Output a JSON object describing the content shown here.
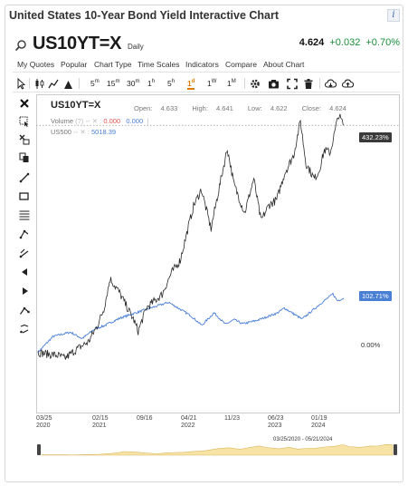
{
  "page": {
    "title": "United States 10-Year Bond Yield Interactive Chart"
  },
  "header": {
    "symbol": "US10YT=X",
    "period": "Daily",
    "last": "4.624",
    "change": "+0.032",
    "change_pct": "+0.70%"
  },
  "menu": [
    "My Quotes",
    "Popular",
    "Chart Type",
    "Time Scales",
    "Indicators",
    "Compare",
    "About Chart"
  ],
  "toolbar": {
    "periods": [
      {
        "n": "5",
        "u": "m"
      },
      {
        "n": "15",
        "u": "m"
      },
      {
        "n": "30",
        "u": "m"
      },
      {
        "n": "1",
        "u": "h"
      },
      {
        "n": "5",
        "u": "h"
      },
      {
        "n": "1",
        "u": "d"
      },
      {
        "n": "1",
        "u": "W"
      },
      {
        "n": "1",
        "u": "M"
      }
    ],
    "active_period": "1d"
  },
  "legend": {
    "symbol": "US10YT=X",
    "open_label": "Open:",
    "open": "4.633",
    "high_label": "High:",
    "high": "4.641",
    "low_label": "Low:",
    "low": "4.622",
    "close_label": "Close:",
    "close": "4.624",
    "volume_label": "Volume",
    "volume_value": "0.000",
    "volume_value2": "0.000",
    "compare_label": "US500",
    "compare_value": "5018.39"
  },
  "price_tags": {
    "main": "432.23%",
    "compare": "102.71%",
    "zero": "0.00%"
  },
  "colors": {
    "main_series": "#2b2b2b",
    "compare_series": "#4a7fd6",
    "active": "#e07b00",
    "positive": "#1a8f3a",
    "navigator_fill": "#f7e3a6"
  },
  "x_ticks": [
    {
      "label": "03/25",
      "year": "2020"
    },
    {
      "label": "02/15",
      "year": "2021"
    },
    {
      "label": "09/16",
      "year": ""
    },
    {
      "label": "04/21",
      "year": "2022"
    },
    {
      "label": "11/23",
      "year": ""
    },
    {
      "label": "06/23",
      "year": "2023"
    },
    {
      "label": "01/19",
      "year": "2024"
    }
  ],
  "navigator": {
    "range_label": "03/25/2020 - 05/21/2024"
  },
  "chart_data": {
    "type": "line",
    "title": "",
    "ylabel": "",
    "xlabel": "",
    "ylim_pct": [
      -20,
      460
    ],
    "series": [
      {
        "name": "US10YT=X",
        "x": [
          "2020-03-25",
          "2020-05-01",
          "2020-07-01",
          "2020-08-05",
          "2020-10-01",
          "2020-12-01",
          "2021-01-15",
          "2021-02-15",
          "2021-03-18",
          "2021-05-01",
          "2021-07-15",
          "2021-08-04",
          "2021-09-16",
          "2021-11-01",
          "2021-12-01",
          "2022-01-15",
          "2022-03-01",
          "2022-04-21",
          "2022-05-06",
          "2022-06-14",
          "2022-08-01",
          "2022-09-01",
          "2022-10-21",
          "2022-11-23",
          "2023-01-15",
          "2023-03-01",
          "2023-04-06",
          "2023-05-15",
          "2023-06-23",
          "2023-08-01",
          "2023-09-15",
          "2023-10-19",
          "2023-11-15",
          "2023-12-27",
          "2024-01-19",
          "2024-02-15",
          "2024-03-15",
          "2024-04-25",
          "2024-05-21"
        ],
        "values_pct": [
          0,
          -3,
          -6,
          -12,
          5,
          20,
          52,
          82,
          140,
          115,
          60,
          40,
          85,
          100,
          110,
          150,
          175,
          255,
          278,
          310,
          235,
          295,
          388,
          320,
          265,
          330,
          250,
          280,
          290,
          340,
          375,
          440,
          360,
          330,
          345,
          385,
          380,
          452,
          432
        ]
      },
      {
        "name": "US500",
        "x": [
          "2020-03-25",
          "2020-06-08",
          "2020-09-02",
          "2020-10-30",
          "2021-01-04",
          "2021-02-15",
          "2021-05-07",
          "2021-09-02",
          "2022-01-03",
          "2022-04-21",
          "2022-06-16",
          "2022-08-16",
          "2022-10-12",
          "2022-11-23",
          "2023-01-05",
          "2023-03-13",
          "2023-06-23",
          "2023-07-31",
          "2023-10-27",
          "2024-01-19",
          "2024-03-28",
          "2024-04-19",
          "2024-05-21"
        ],
        "values_pct": [
          0,
          30,
          38,
          26,
          45,
          50,
          65,
          80,
          95,
          70,
          51,
          75,
          53,
          62,
          54,
          60,
          74,
          84,
          63,
          90,
          111,
          98,
          103
        ]
      }
    ],
    "grid": false,
    "legend": "top-left"
  }
}
